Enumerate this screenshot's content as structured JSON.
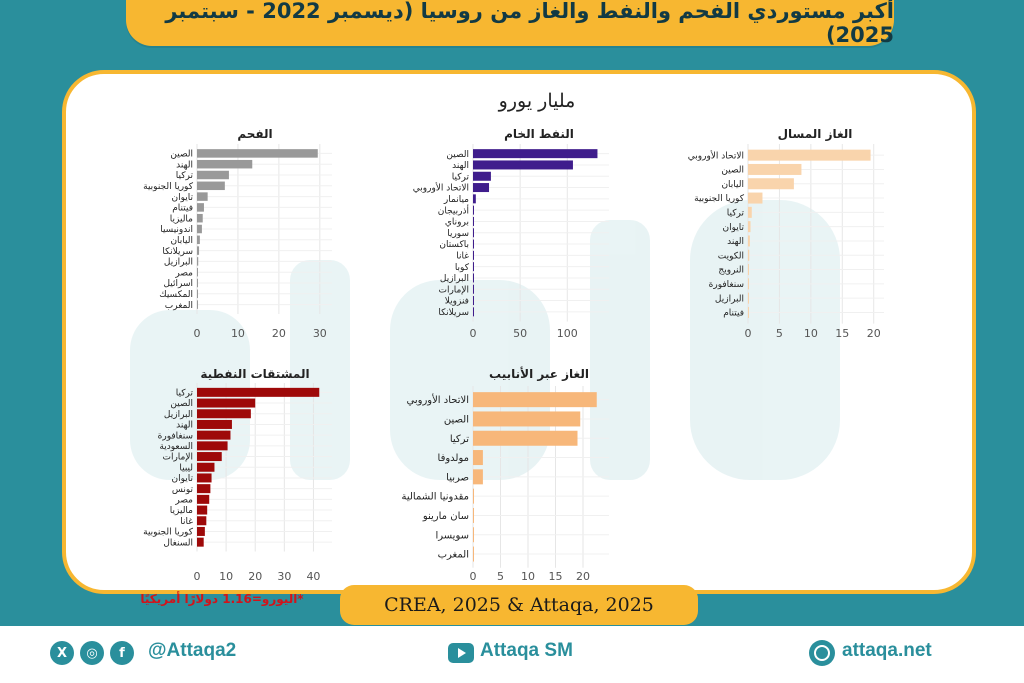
{
  "title": "أكبر مستوردي الفحم والنفط والغاز من روسيا (ديسمبر 2022 - سبتمبر 2025)",
  "unit": "مليار يورو",
  "note": "*اليورو=1.16 دولارًا أمريكيًا",
  "source": "CREA, 2025 & Attaqa, 2025",
  "footer": {
    "handle": "@Attaqa2",
    "youtube": "Attaqa SM",
    "site": "attaqa.net"
  },
  "colors": {
    "coal": "#999999",
    "crude": "#3f1d8c",
    "lng": "#f9d4ac",
    "products": "#9e0909",
    "pipeline": "#f7b77a",
    "accent": "#f7b731",
    "teal": "#2a8f9c"
  },
  "chart_data": [
    {
      "type": "bar",
      "orientation": "horizontal",
      "title": "الفحم",
      "categories": [
        "الصين",
        "الهند",
        "تركيا",
        "كوريا الجنوبية",
        "تايوان",
        "فيتنام",
        "ماليزيا",
        "اندونيسيا",
        "اليابان",
        "سريلانكا",
        "البرازيل",
        "مصر",
        "اسرائيل",
        "المكسيك",
        "المغرب"
      ],
      "values": [
        29.5,
        13.5,
        7.8,
        6.8,
        2.6,
        1.7,
        1.4,
        1.2,
        0.7,
        0.5,
        0.3,
        0.2,
        0.15,
        0.1,
        0.1
      ],
      "xlim": [
        0,
        32
      ],
      "ticks": [
        0,
        10,
        20,
        30
      ]
    },
    {
      "type": "bar",
      "orientation": "horizontal",
      "title": "النفط الخام",
      "categories": [
        "الصين",
        "الهند",
        "تركيا",
        "الاتحاد الأوروبي",
        "ميانمار",
        "أذربيجان",
        "بروناي",
        "سوريا",
        "باكستان",
        "غانا",
        "كوبا",
        "البرازيل",
        "الإمارات",
        "فنزويلا",
        "سريلانكا"
      ],
      "values": [
        132,
        106,
        19,
        17,
        3,
        0.8,
        0.6,
        0.5,
        0.5,
        0.3,
        0.3,
        0.2,
        0.2,
        0.2,
        0.1
      ],
      "xlim": [
        0,
        140
      ],
      "ticks": [
        0,
        50,
        100
      ]
    },
    {
      "type": "bar",
      "orientation": "horizontal",
      "title": "الغاز المسال",
      "categories": [
        "الاتحاد الأوروبي",
        "الصين",
        "اليابان",
        "كوريا الجنوبية",
        "تركيا",
        "تايوان",
        "الهند",
        "الكويت",
        "النرويج",
        "سنغافورة",
        "البرازيل",
        "فيتنام"
      ],
      "values": [
        19.5,
        8.5,
        7.3,
        2.3,
        0.6,
        0.4,
        0.3,
        0.2,
        0.15,
        0.1,
        0.1,
        0.05
      ],
      "xlim": [
        0,
        21
      ],
      "ticks": [
        0,
        5,
        10,
        15,
        20
      ]
    },
    {
      "type": "bar",
      "orientation": "horizontal",
      "title": "المشتقات النفطية",
      "categories": [
        "تركيا",
        "الصين",
        "البرازيل",
        "الهند",
        "سنغافورة",
        "السعودية",
        "الإمارات",
        "ليبيا",
        "تايوان",
        "تونس",
        "مصر",
        "ماليزيا",
        "غانا",
        "كوريا الجنوبية",
        "السنغال"
      ],
      "values": [
        42,
        20,
        18.5,
        12,
        11.5,
        10.5,
        8.5,
        6,
        5,
        4.6,
        4.2,
        3.5,
        3.2,
        2.7,
        2.3
      ],
      "xlim": [
        0,
        45
      ],
      "ticks": [
        0,
        10,
        20,
        30,
        40
      ]
    },
    {
      "type": "bar",
      "orientation": "horizontal",
      "title": "الغاز عبر الأنابيب",
      "categories": [
        "الاتحاد الأوروبي",
        "الصين",
        "تركيا",
        "مولدوفا",
        "صربيا",
        "مقدونيا الشمالية",
        "سان مارينو",
        "سويسرا",
        "المغرب"
      ],
      "values": [
        22.5,
        19.5,
        19,
        1.8,
        1.8,
        0.1,
        0.05,
        0.05,
        0.05
      ],
      "xlim": [
        0,
        24
      ],
      "ticks": [
        0,
        5,
        10,
        15,
        20
      ]
    }
  ]
}
